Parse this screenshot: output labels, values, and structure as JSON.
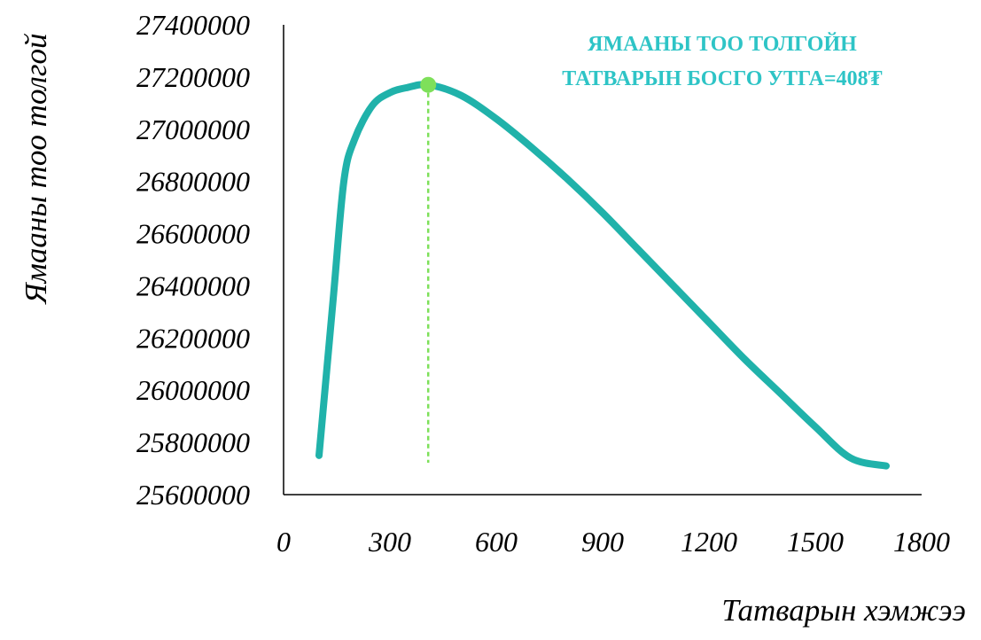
{
  "chart_data": {
    "type": "line",
    "title": "",
    "xlabel": "Татварын хэмжээ",
    "ylabel": "Ямааны тоо толгой",
    "xlim": [
      0,
      1800
    ],
    "ylim": [
      25600000,
      27400000
    ],
    "x_ticks": [
      "0",
      "300",
      "600",
      "900",
      "1200",
      "1500",
      "1800"
    ],
    "y_ticks": [
      "25600000",
      "25800000",
      "26000000",
      "26200000",
      "26400000",
      "26600000",
      "26800000",
      "27000000",
      "27200000",
      "27400000"
    ],
    "grid": false,
    "series": [
      {
        "color": "#20b2aa",
        "x": [
          100,
          140,
          170,
          200,
          250,
          300,
          350,
          408,
          500,
          600,
          700,
          800,
          900,
          1000,
          1100,
          1200,
          1300,
          1400,
          1500,
          1600,
          1700
        ],
        "y": [
          25750000,
          26350000,
          26800000,
          26960000,
          27090000,
          27140000,
          27160000,
          27170000,
          27130000,
          27040000,
          26930000,
          26810000,
          26680000,
          26540000,
          26400000,
          26260000,
          26120000,
          25990000,
          25860000,
          25740000,
          25710000
        ]
      }
    ],
    "optimum": {
      "x": 408,
      "y": 27170000,
      "marker_color": "#7ee05a",
      "annotation_lines": [
        "ЯМААНЫ ТОО ТОЛГОЙН",
        "ТАТВАРЫН БОСГО УТГА=408₮"
      ]
    }
  }
}
